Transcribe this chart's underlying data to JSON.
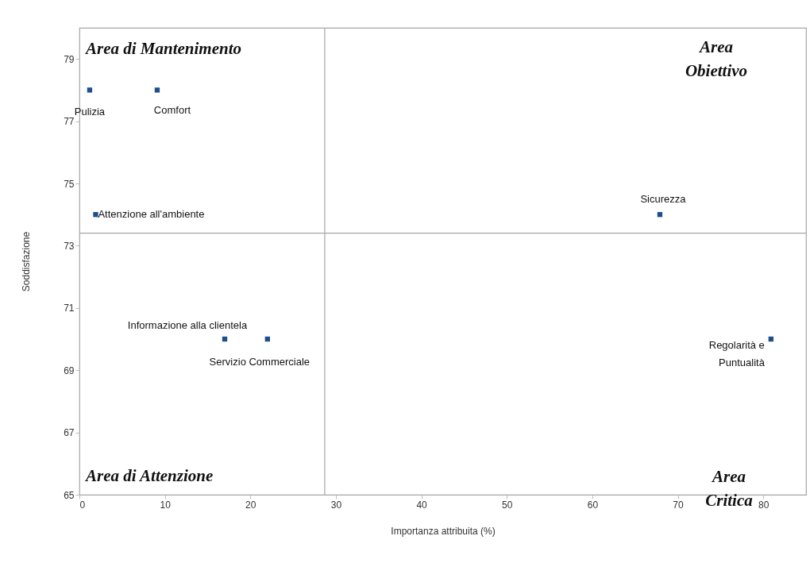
{
  "chart_data": {
    "type": "scatter",
    "xlabel": "Importanza attribuita (%)",
    "ylabel": "Soddisfazione",
    "xlim": [
      0,
      85
    ],
    "xticks": [
      0,
      10,
      20,
      30,
      40,
      50,
      60,
      70,
      80
    ],
    "ylim": [
      65,
      80
    ],
    "yticks": [
      65,
      67,
      69,
      71,
      73,
      75,
      77,
      79
    ],
    "grid": false,
    "legend": false,
    "marker": "square",
    "series": [
      {
        "name": "Pulizia",
        "color": "#1f4e8c",
        "x": [
          1.2
        ],
        "values": [
          78
        ]
      },
      {
        "name": "Comfort",
        "color": "#1f4e8c",
        "x": [
          9.1
        ],
        "values": [
          78
        ]
      },
      {
        "name": "Attenzione all'ambiente",
        "color": "#1f4e8c",
        "x": [
          1.9
        ],
        "values": [
          74
        ]
      },
      {
        "name": "Sicurezza",
        "color": "#1f4e8c",
        "x": [
          67.9
        ],
        "values": [
          74
        ]
      },
      {
        "name": "Informazione alla clientela",
        "color": "#1f4e8c",
        "x": [
          17
        ],
        "values": [
          70
        ]
      },
      {
        "name": "Servizio Commerciale",
        "color": "#1f4e8c",
        "x": [
          22
        ],
        "values": [
          70
        ]
      },
      {
        "name": "Regolarità e Puntualità",
        "color": "#1f4e8c",
        "x": [
          80.9
        ],
        "values": [
          70
        ]
      }
    ],
    "ref_lines": [
      {
        "axis": "x",
        "value": 28.7,
        "color": "#a6a6a6"
      },
      {
        "axis": "y",
        "value": 73.4,
        "color": "#a6a6a6"
      }
    ],
    "annotations": [
      "Area di Mantenimento",
      "Area Obiettivo",
      "Area di Attenzione",
      "Area Critica"
    ]
  }
}
